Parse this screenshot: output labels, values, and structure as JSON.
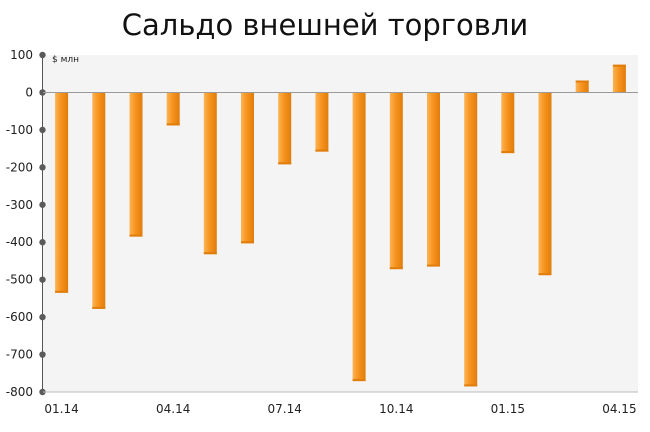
{
  "chart_data": {
    "type": "bar",
    "title": "Сальдо внешней торговли",
    "unit_label": "$ млн",
    "xlabel": "",
    "ylabel": "",
    "ylim": [
      -800,
      100
    ],
    "yticks": [
      100,
      0,
      -100,
      -200,
      -300,
      -400,
      -500,
      -600,
      -700,
      -800
    ],
    "categories": [
      "01.14",
      "02.14",
      "03.14",
      "04.14",
      "05.14",
      "06.14",
      "07.14",
      "08.14",
      "09.14",
      "10.14",
      "11.14",
      "12.14",
      "01.15",
      "02.15",
      "03.15",
      "04.15"
    ],
    "xtick_labels": [
      "01.14",
      "04.14",
      "07.14",
      "10.14",
      "01.15",
      "04.15"
    ],
    "values": [
      -535,
      -578,
      -385,
      -88,
      -432,
      -403,
      -192,
      -158,
      -771,
      -472,
      -465,
      -785,
      -162,
      -488,
      32,
      74
    ],
    "grid": false,
    "legend": "none",
    "colors": {
      "bar": "#f7931e",
      "bar_light": "#fbb454",
      "bar_dark": "#e07d0b",
      "plot_background": "#f4f4f4",
      "axis": "#555555"
    }
  }
}
